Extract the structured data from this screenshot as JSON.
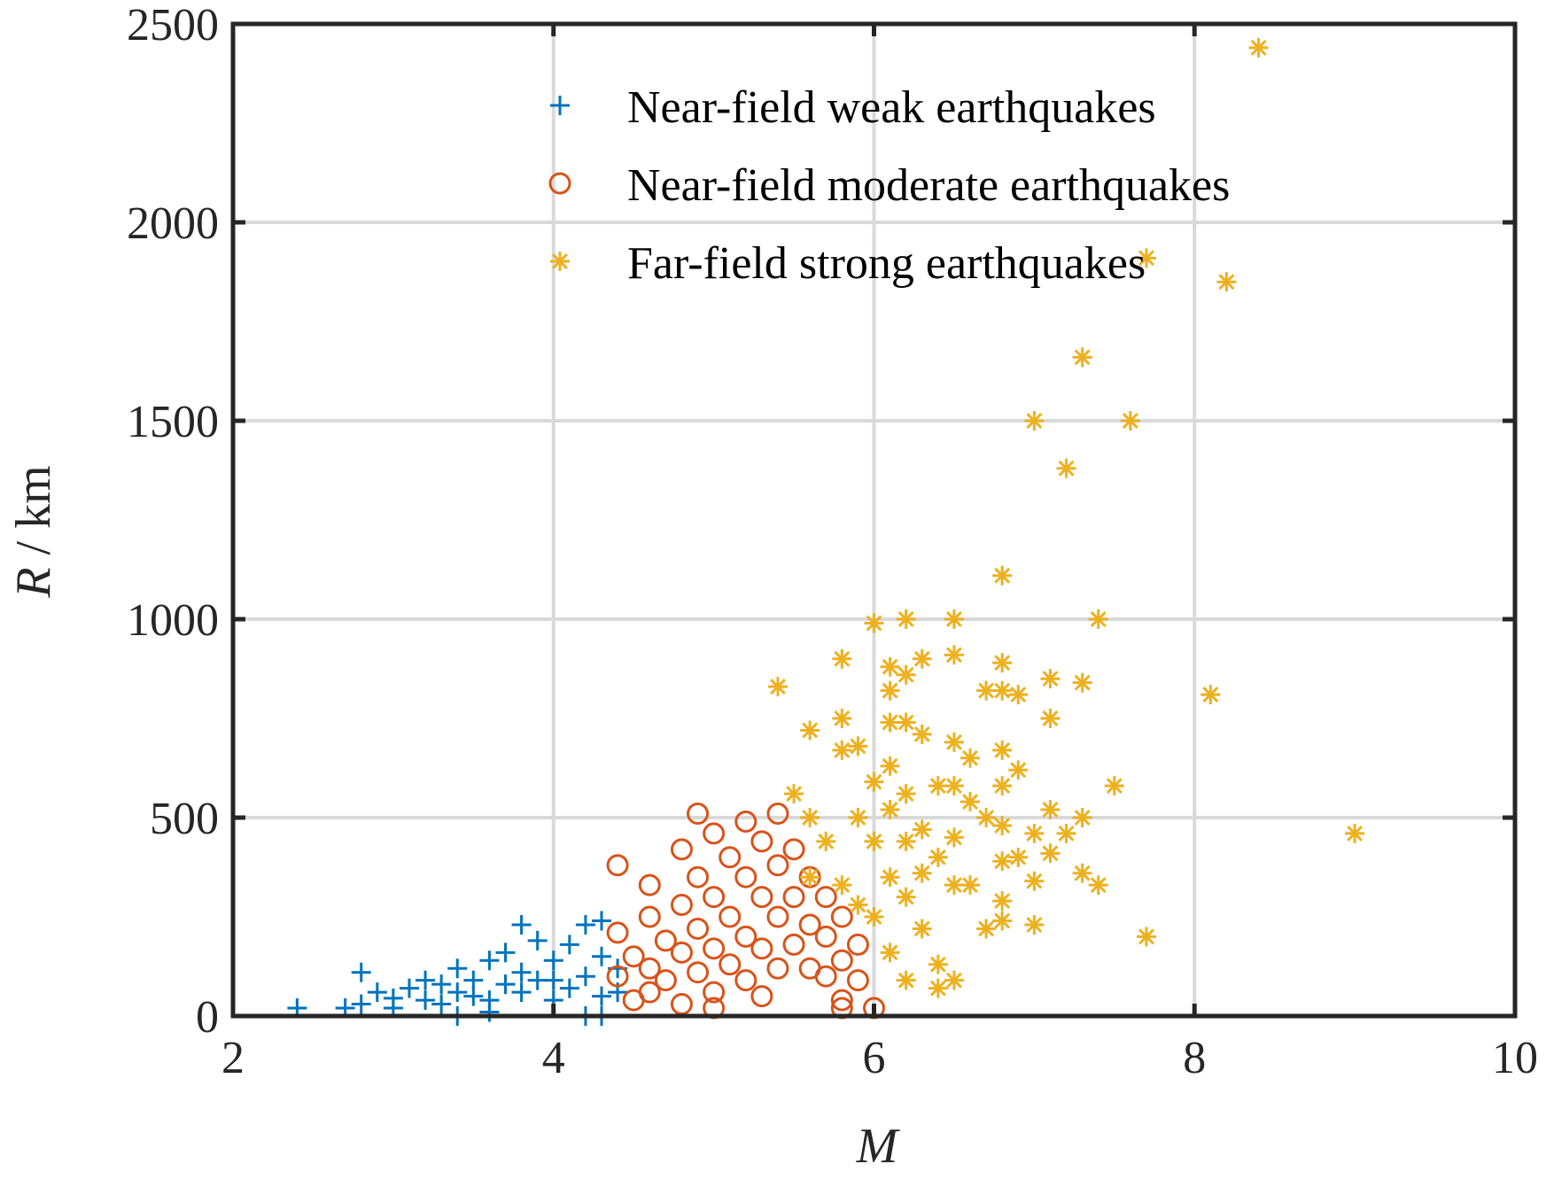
{
  "chart_data": {
    "type": "scatter",
    "title": "",
    "xlabel": "M",
    "ylabel_var": "R",
    "ylabel_unit": " / km",
    "xlim": [
      2,
      10
    ],
    "ylim": [
      0,
      2500
    ],
    "xticks": [
      2,
      4,
      6,
      8,
      10
    ],
    "yticks": [
      0,
      500,
      1000,
      1500,
      2000,
      2500
    ],
    "grid": true,
    "legend_position": "top-right",
    "series": [
      {
        "name": "Near-field weak earthquakes",
        "marker": "plus",
        "color": "#0072BD",
        "points": [
          [
            2.4,
            20
          ],
          [
            2.7,
            20
          ],
          [
            2.8,
            110
          ],
          [
            2.8,
            30
          ],
          [
            2.9,
            60
          ],
          [
            3.0,
            45
          ],
          [
            3.0,
            20
          ],
          [
            3.1,
            70
          ],
          [
            3.2,
            40
          ],
          [
            3.2,
            90
          ],
          [
            3.3,
            30
          ],
          [
            3.3,
            80
          ],
          [
            3.4,
            60
          ],
          [
            3.4,
            120
          ],
          [
            3.5,
            50
          ],
          [
            3.5,
            90
          ],
          [
            3.6,
            140
          ],
          [
            3.6,
            40
          ],
          [
            3.7,
            80
          ],
          [
            3.7,
            160
          ],
          [
            3.8,
            230
          ],
          [
            3.8,
            60
          ],
          [
            3.8,
            110
          ],
          [
            3.9,
            190
          ],
          [
            3.9,
            90
          ],
          [
            4.0,
            40
          ],
          [
            4.0,
            140
          ],
          [
            4.1,
            70
          ],
          [
            4.1,
            180
          ],
          [
            4.2,
            100
          ],
          [
            4.2,
            230
          ],
          [
            4.2,
            0
          ],
          [
            4.3,
            150
          ],
          [
            4.3,
            50
          ],
          [
            4.3,
            240
          ],
          [
            4.4,
            120
          ],
          [
            4.4,
            60
          ],
          [
            3.4,
            0
          ],
          [
            3.6,
            10
          ],
          [
            4.0,
            90
          ],
          [
            4.3,
            0
          ]
        ]
      },
      {
        "name": "Near-field moderate earthquakes",
        "marker": "circle",
        "color": "#D95319",
        "points": [
          [
            4.4,
            210
          ],
          [
            4.4,
            100
          ],
          [
            4.4,
            380
          ],
          [
            4.5,
            150
          ],
          [
            4.5,
            40
          ],
          [
            4.6,
            330
          ],
          [
            4.6,
            250
          ],
          [
            4.6,
            120
          ],
          [
            4.6,
            60
          ],
          [
            4.7,
            190
          ],
          [
            4.7,
            90
          ],
          [
            4.8,
            420
          ],
          [
            4.8,
            280
          ],
          [
            4.8,
            160
          ],
          [
            4.8,
            30
          ],
          [
            4.9,
            510
          ],
          [
            4.9,
            350
          ],
          [
            4.9,
            220
          ],
          [
            4.9,
            110
          ],
          [
            5.0,
            460
          ],
          [
            5.0,
            300
          ],
          [
            5.0,
            170
          ],
          [
            5.0,
            60
          ],
          [
            5.0,
            20
          ],
          [
            5.1,
            400
          ],
          [
            5.1,
            250
          ],
          [
            5.1,
            130
          ],
          [
            5.2,
            490
          ],
          [
            5.2,
            350
          ],
          [
            5.2,
            200
          ],
          [
            5.2,
            90
          ],
          [
            5.3,
            440
          ],
          [
            5.3,
            300
          ],
          [
            5.3,
            170
          ],
          [
            5.3,
            50
          ],
          [
            5.4,
            510
          ],
          [
            5.4,
            380
          ],
          [
            5.4,
            250
          ],
          [
            5.4,
            120
          ],
          [
            5.5,
            420
          ],
          [
            5.5,
            300
          ],
          [
            5.5,
            180
          ],
          [
            5.6,
            350
          ],
          [
            5.6,
            230
          ],
          [
            5.6,
            120
          ],
          [
            5.7,
            300
          ],
          [
            5.7,
            200
          ],
          [
            5.7,
            100
          ],
          [
            5.8,
            250
          ],
          [
            5.8,
            140
          ],
          [
            5.8,
            40
          ],
          [
            5.8,
            20
          ],
          [
            5.9,
            180
          ],
          [
            5.9,
            90
          ],
          [
            6.0,
            20
          ]
        ]
      },
      {
        "name": "Far-field strong earthquakes",
        "marker": "asterisk",
        "color": "#EDB120",
        "points": [
          [
            5.4,
            830
          ],
          [
            5.5,
            560
          ],
          [
            5.6,
            720
          ],
          [
            5.6,
            500
          ],
          [
            5.6,
            350
          ],
          [
            5.7,
            440
          ],
          [
            5.8,
            900
          ],
          [
            5.8,
            750
          ],
          [
            5.8,
            670
          ],
          [
            5.8,
            330
          ],
          [
            5.9,
            680
          ],
          [
            5.9,
            500
          ],
          [
            5.9,
            280
          ],
          [
            6.0,
            990
          ],
          [
            6.0,
            590
          ],
          [
            6.0,
            440
          ],
          [
            6.0,
            250
          ],
          [
            6.1,
            880
          ],
          [
            6.1,
            820
          ],
          [
            6.1,
            740
          ],
          [
            6.1,
            630
          ],
          [
            6.1,
            520
          ],
          [
            6.1,
            350
          ],
          [
            6.1,
            160
          ],
          [
            6.2,
            1000
          ],
          [
            6.2,
            860
          ],
          [
            6.2,
            740
          ],
          [
            6.2,
            560
          ],
          [
            6.2,
            440
          ],
          [
            6.2,
            300
          ],
          [
            6.2,
            90
          ],
          [
            6.3,
            900
          ],
          [
            6.3,
            710
          ],
          [
            6.3,
            470
          ],
          [
            6.3,
            360
          ],
          [
            6.3,
            220
          ],
          [
            6.4,
            580
          ],
          [
            6.4,
            400
          ],
          [
            6.4,
            130
          ],
          [
            6.4,
            70
          ],
          [
            6.5,
            1000
          ],
          [
            6.5,
            910
          ],
          [
            6.5,
            690
          ],
          [
            6.5,
            580
          ],
          [
            6.5,
            450
          ],
          [
            6.5,
            330
          ],
          [
            6.5,
            90
          ],
          [
            6.6,
            650
          ],
          [
            6.6,
            540
          ],
          [
            6.6,
            330
          ],
          [
            6.7,
            820
          ],
          [
            6.7,
            500
          ],
          [
            6.7,
            220
          ],
          [
            6.8,
            1110
          ],
          [
            6.8,
            890
          ],
          [
            6.8,
            820
          ],
          [
            6.8,
            670
          ],
          [
            6.8,
            580
          ],
          [
            6.8,
            480
          ],
          [
            6.8,
            390
          ],
          [
            6.8,
            290
          ],
          [
            6.8,
            240
          ],
          [
            6.9,
            810
          ],
          [
            6.9,
            620
          ],
          [
            6.9,
            400
          ],
          [
            7.0,
            1500
          ],
          [
            7.0,
            460
          ],
          [
            7.0,
            340
          ],
          [
            7.0,
            230
          ],
          [
            7.1,
            850
          ],
          [
            7.1,
            750
          ],
          [
            7.1,
            520
          ],
          [
            7.1,
            410
          ],
          [
            7.2,
            1380
          ],
          [
            7.2,
            460
          ],
          [
            7.3,
            1660
          ],
          [
            7.3,
            840
          ],
          [
            7.3,
            500
          ],
          [
            7.3,
            360
          ],
          [
            7.4,
            1000
          ],
          [
            7.4,
            330
          ],
          [
            7.5,
            580
          ],
          [
            7.6,
            1500
          ],
          [
            7.7,
            1910
          ],
          [
            7.7,
            200
          ],
          [
            8.1,
            810
          ],
          [
            8.2,
            1850
          ],
          [
            8.4,
            2440
          ],
          [
            9.0,
            460
          ]
        ]
      }
    ]
  }
}
